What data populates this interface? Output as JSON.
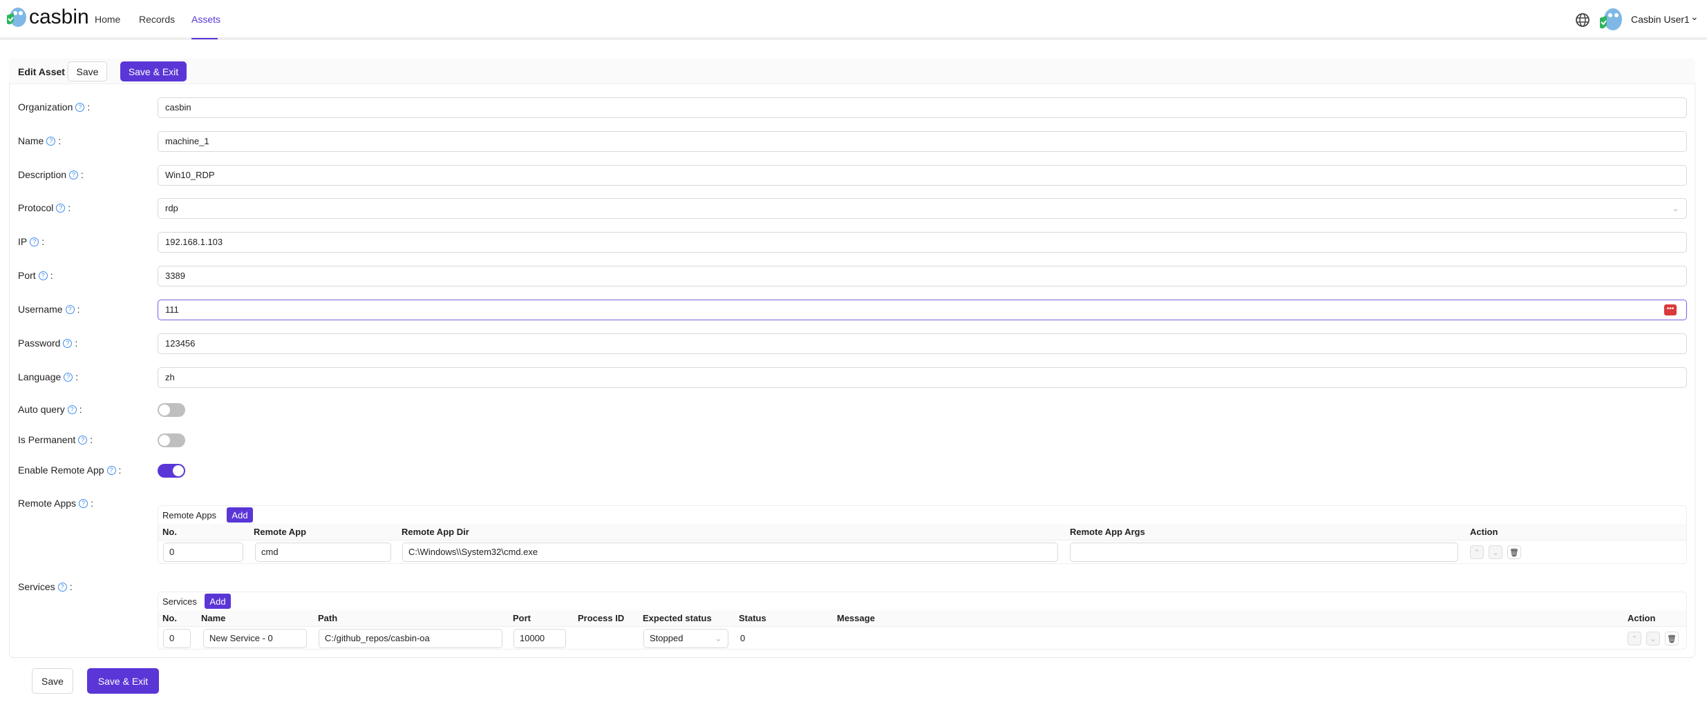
{
  "header": {
    "logo": "casbin",
    "nav": [
      "Home",
      "Records",
      "Assets"
    ],
    "active": "Assets",
    "user": "Casbin User1"
  },
  "toolbar": {
    "title": "Edit Asset",
    "save": "Save",
    "save_exit": "Save & Exit"
  },
  "fields": [
    {
      "label": "Organization",
      "value": "casbin"
    },
    {
      "label": "Name",
      "value": "machine_1"
    },
    {
      "label": "Description",
      "value": "Win10_RDP"
    },
    {
      "label": "Protocol",
      "value": "rdp"
    },
    {
      "label": "IP",
      "value": "192.168.1.103"
    },
    {
      "label": "Port",
      "value": "3389"
    },
    {
      "label": "Username",
      "value": "111"
    },
    {
      "label": "Password",
      "value": "123456"
    },
    {
      "label": "Language",
      "value": "zh"
    }
  ],
  "toggles": [
    {
      "label": "Auto query",
      "on": false
    },
    {
      "label": "Is Permanent",
      "on": false
    },
    {
      "label": "Enable Remote App",
      "on": true
    }
  ],
  "remote_apps": {
    "label": "Remote Apps",
    "title": "Remote Apps",
    "add": "Add",
    "columns": [
      "No.",
      "Remote App",
      "Remote App Dir",
      "Remote App Args",
      "Action"
    ],
    "rows": [
      {
        "no": "0",
        "app": "cmd",
        "dir": "C:\\Windows\\\\System32\\cmd.exe",
        "args": ""
      }
    ]
  },
  "services": {
    "label": "Services",
    "title": "Services",
    "add": "Add",
    "columns": [
      "No.",
      "Name",
      "Path",
      "Port",
      "Process ID",
      "Expected status",
      "Status",
      "Message",
      "Action"
    ],
    "rows": [
      {
        "no": "0",
        "name": "New Service - 0",
        "path": "C:/github_repos/casbin-oa",
        "port": "10000",
        "pid": "",
        "expected": "Stopped",
        "status": "0",
        "message": ""
      }
    ]
  },
  "footer": {
    "save": "Save",
    "save_exit": "Save & Exit"
  },
  "colors": {
    "accent": "#5a36d6",
    "help": "#3d8be8"
  }
}
